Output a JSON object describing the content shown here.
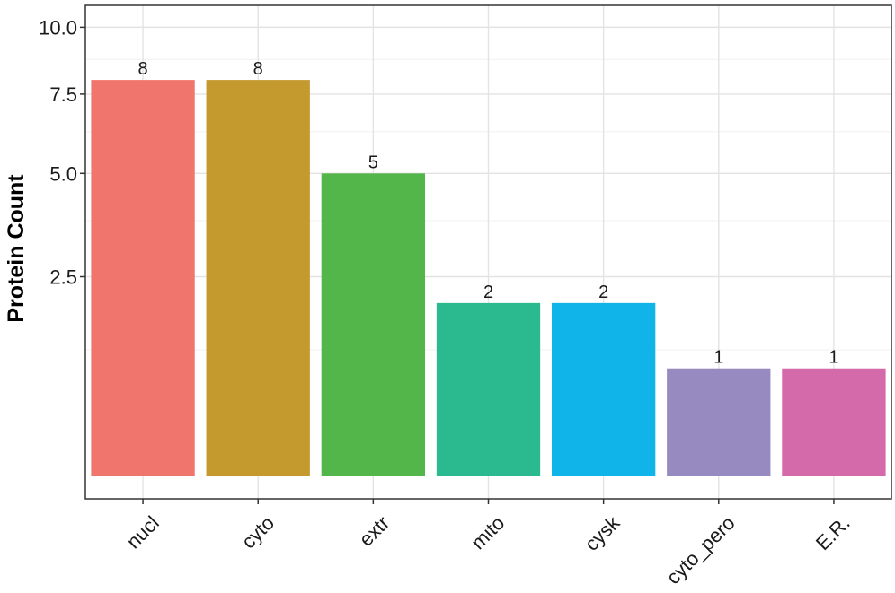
{
  "chart_data": {
    "type": "bar",
    "title": "",
    "xlabel": "",
    "ylabel": "Protein Count",
    "y_scale": "sqrt",
    "ylim": [
      0,
      10
    ],
    "yticks": [
      {
        "value": 2.5,
        "label": "2.5"
      },
      {
        "value": 5.0,
        "label": "5.0"
      },
      {
        "value": 7.5,
        "label": "7.5"
      },
      {
        "value": 10.0,
        "label": "10.0"
      }
    ],
    "grid": true,
    "legend": "none",
    "categories": [
      "nucl",
      "cyto",
      "extr",
      "mito",
      "cysk",
      "cyto_pero",
      "E.R."
    ],
    "values": [
      8,
      8,
      5,
      2,
      2,
      1,
      1
    ],
    "data_labels": [
      "8",
      "8",
      "5",
      "2",
      "2",
      "1",
      "1"
    ],
    "colors": [
      "#F0766D",
      "#C49A2F",
      "#53B64A",
      "#2BB98F",
      "#10B4E8",
      "#968AC1",
      "#D46AA9"
    ]
  }
}
